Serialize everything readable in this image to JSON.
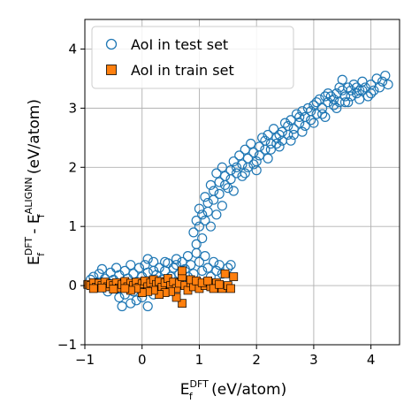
{
  "chart_data": {
    "type": "scatter",
    "xlabel": {
      "main": "E",
      "sub": "f",
      "sup": "DFT",
      "suffix": " (eV/atom)"
    },
    "ylabel": {
      "main1": "E",
      "sub1": "f",
      "sup1": "DFT",
      "mid": " - ",
      "main2": "E",
      "sub2": "f",
      "sup2": "ALIGNN",
      "suffix": " (eV/atom)"
    },
    "xlim": [
      -1,
      4.5
    ],
    "ylim": [
      -1,
      4.5
    ],
    "xticks": [
      "−1",
      "0",
      "1",
      "2",
      "3",
      "4"
    ],
    "xtick_values": [
      -1,
      0,
      1,
      2,
      3,
      4
    ],
    "yticks": [
      "−1",
      "0",
      "1",
      "2",
      "3",
      "4"
    ],
    "ytick_values": [
      -1,
      0,
      1,
      2,
      3,
      4
    ],
    "grid": true,
    "legend_position": "upper-left",
    "series": [
      {
        "name": "AoI in test set",
        "marker": "open-circle",
        "color": "#1f77b4",
        "points": [
          [
            -0.9,
            0.1
          ],
          [
            -0.85,
            0.15
          ],
          [
            -0.8,
            0.05
          ],
          [
            -0.75,
            0.2
          ],
          [
            -0.7,
            0.28
          ],
          [
            -0.65,
            0.12
          ],
          [
            -0.6,
            0.05
          ],
          [
            -0.55,
            0.22
          ],
          [
            -0.5,
            0.1
          ],
          [
            -0.45,
            0.3
          ],
          [
            -0.4,
            0.18
          ],
          [
            -0.35,
            0.02
          ],
          [
            -0.3,
            0.25
          ],
          [
            -0.25,
            0.12
          ],
          [
            -0.2,
            0.35
          ],
          [
            -0.15,
            0.2
          ],
          [
            -0.1,
            0.05
          ],
          [
            -0.05,
            0.3
          ],
          [
            0.0,
            0.15
          ],
          [
            0.05,
            0.35
          ],
          [
            0.1,
            0.22
          ],
          [
            0.15,
            0.05
          ],
          [
            0.2,
            0.4
          ],
          [
            0.25,
            0.18
          ],
          [
            0.3,
            0.3
          ],
          [
            0.35,
            0.1
          ],
          [
            0.4,
            0.25
          ],
          [
            0.45,
            0.38
          ],
          [
            0.5,
            0.15
          ],
          [
            0.55,
            0.3
          ],
          [
            0.6,
            0.45
          ],
          [
            0.65,
            0.2
          ],
          [
            0.7,
            0.4
          ],
          [
            0.75,
            0.28
          ],
          [
            0.8,
            0.5
          ],
          [
            0.85,
            0.35
          ],
          [
            0.9,
            0.2
          ],
          [
            0.95,
            0.55
          ],
          [
            1.0,
            0.4
          ],
          [
            1.05,
            0.25
          ],
          [
            1.1,
            0.5
          ],
          [
            1.15,
            0.3
          ],
          [
            1.2,
            0.15
          ],
          [
            1.25,
            0.4
          ],
          [
            1.3,
            0.25
          ],
          [
            1.35,
            0.35
          ],
          [
            1.4,
            0.2
          ],
          [
            1.5,
            0.3
          ],
          [
            1.55,
            0.35
          ],
          [
            -0.6,
            -0.1
          ],
          [
            -0.4,
            -0.2
          ],
          [
            -0.3,
            -0.15
          ],
          [
            -0.2,
            -0.3
          ],
          [
            -0.1,
            -0.25
          ],
          [
            0.0,
            -0.2
          ],
          [
            0.1,
            -0.35
          ],
          [
            -0.35,
            -0.35
          ],
          [
            0.2,
            -0.15
          ],
          [
            0.3,
            -0.1
          ],
          [
            0.4,
            -0.05
          ],
          [
            -0.45,
            -0.05
          ],
          [
            -0.15,
            -0.1
          ],
          [
            0.05,
            -0.05
          ],
          [
            0.9,
            0.9
          ],
          [
            0.95,
            1.1
          ],
          [
            1.0,
            1.3
          ],
          [
            1.05,
            1.2
          ],
          [
            1.1,
            1.5
          ],
          [
            1.15,
            1.4
          ],
          [
            1.2,
            1.7
          ],
          [
            1.25,
            1.6
          ],
          [
            1.3,
            1.9
          ],
          [
            1.35,
            1.75
          ],
          [
            1.4,
            2.0
          ],
          [
            1.45,
            1.85
          ],
          [
            1.5,
            1.65
          ],
          [
            1.55,
            1.95
          ],
          [
            1.6,
            2.1
          ],
          [
            1.65,
            1.9
          ],
          [
            1.7,
            2.2
          ],
          [
            1.75,
            2.05
          ],
          [
            1.8,
            2.3
          ],
          [
            1.85,
            2.15
          ],
          [
            1.9,
            2.4
          ],
          [
            1.95,
            2.25
          ],
          [
            2.0,
            2.1
          ],
          [
            2.05,
            2.35
          ],
          [
            2.1,
            2.5
          ],
          [
            2.15,
            2.3
          ],
          [
            2.2,
            2.55
          ],
          [
            2.25,
            2.4
          ],
          [
            2.3,
            2.65
          ],
          [
            2.35,
            2.5
          ],
          [
            2.4,
            2.35
          ],
          [
            2.45,
            2.6
          ],
          [
            2.5,
            2.75
          ],
          [
            2.55,
            2.55
          ],
          [
            2.6,
            2.8
          ],
          [
            2.65,
            2.65
          ],
          [
            2.7,
            2.9
          ],
          [
            2.75,
            2.75
          ],
          [
            2.8,
            2.6
          ],
          [
            2.85,
            2.85
          ],
          [
            2.9,
            3.0
          ],
          [
            2.95,
            2.8
          ],
          [
            3.0,
            3.05
          ],
          [
            3.05,
            2.9
          ],
          [
            3.1,
            3.15
          ],
          [
            3.15,
            3.0
          ],
          [
            3.2,
            2.85
          ],
          [
            3.25,
            3.1
          ],
          [
            3.3,
            3.2
          ],
          [
            3.35,
            3.05
          ],
          [
            3.4,
            3.25
          ],
          [
            3.45,
            3.1
          ],
          [
            3.5,
            3.3
          ],
          [
            3.55,
            3.2
          ],
          [
            3.6,
            3.35
          ],
          [
            3.65,
            3.2
          ],
          [
            3.7,
            3.4
          ],
          [
            3.75,
            3.25
          ],
          [
            3.8,
            3.3
          ],
          [
            3.85,
            3.45
          ],
          [
            3.9,
            3.35
          ],
          [
            3.95,
            3.2
          ],
          [
            4.0,
            3.4
          ],
          [
            4.05,
            3.3
          ],
          [
            4.1,
            3.5
          ],
          [
            4.15,
            3.35
          ],
          [
            4.2,
            3.45
          ],
          [
            4.25,
            3.55
          ],
          [
            4.3,
            3.4
          ],
          [
            3.5,
            3.48
          ],
          [
            1.3,
            1.2
          ],
          [
            1.4,
            1.35
          ],
          [
            1.6,
            1.6
          ],
          [
            1.8,
            1.9
          ],
          [
            2.0,
            1.95
          ],
          [
            2.2,
            2.15
          ],
          [
            2.4,
            2.55
          ],
          [
            2.6,
            2.45
          ],
          [
            2.8,
            2.95
          ],
          [
            3.0,
            2.75
          ],
          [
            3.2,
            3.2
          ],
          [
            3.4,
            3.0
          ],
          [
            3.6,
            3.1
          ],
          [
            3.8,
            3.15
          ],
          [
            4.0,
            3.25
          ],
          [
            1.2,
            1.0
          ],
          [
            1.1,
            1.1
          ],
          [
            1.0,
            1.0
          ],
          [
            0.95,
            0.7
          ],
          [
            1.05,
            0.8
          ],
          [
            1.15,
            1.25
          ],
          [
            1.25,
            1.45
          ],
          [
            1.35,
            1.55
          ],
          [
            1.45,
            1.7
          ],
          [
            1.55,
            1.8
          ],
          [
            1.65,
            2.0
          ],
          [
            1.75,
            1.85
          ],
          [
            1.85,
            2.0
          ],
          [
            1.95,
            2.05
          ],
          [
            2.05,
            2.2
          ],
          [
            2.15,
            2.45
          ],
          [
            2.25,
            2.3
          ],
          [
            2.35,
            2.4
          ],
          [
            2.45,
            2.45
          ],
          [
            2.55,
            2.7
          ],
          [
            2.65,
            2.55
          ],
          [
            2.75,
            2.85
          ],
          [
            2.85,
            2.7
          ],
          [
            2.95,
            2.95
          ],
          [
            3.05,
            3.1
          ],
          [
            3.15,
            2.9
          ],
          [
            3.25,
            3.25
          ],
          [
            3.35,
            3.15
          ],
          [
            3.45,
            3.35
          ],
          [
            3.55,
            3.1
          ],
          [
            3.65,
            3.3
          ],
          [
            3.75,
            3.35
          ],
          [
            3.85,
            3.3
          ],
          [
            0.3,
            0.05
          ],
          [
            0.5,
            0.0
          ],
          [
            0.7,
            0.1
          ],
          [
            0.8,
            0.15
          ],
          [
            0.6,
            0.35
          ],
          [
            0.4,
            0.4
          ],
          [
            0.2,
            0.25
          ],
          [
            0.1,
            0.45
          ]
        ]
      },
      {
        "name": "AoI in train set",
        "marker": "filled-square",
        "color": "#ff7f0e",
        "points": [
          [
            -0.95,
            0.02
          ],
          [
            -0.9,
            0.0
          ],
          [
            -0.85,
            0.05
          ],
          [
            -0.8,
            -0.03
          ],
          [
            -0.75,
            0.04
          ],
          [
            -0.7,
            0.0
          ],
          [
            -0.65,
            0.06
          ],
          [
            -0.6,
            -0.02
          ],
          [
            -0.55,
            0.03
          ],
          [
            -0.5,
            0.0
          ],
          [
            -0.45,
            0.05
          ],
          [
            -0.4,
            -0.04
          ],
          [
            -0.35,
            0.02
          ],
          [
            -0.3,
            0.07
          ],
          [
            -0.25,
            -0.02
          ],
          [
            -0.2,
            0.04
          ],
          [
            -0.15,
            0.0
          ],
          [
            -0.1,
            0.06
          ],
          [
            -0.05,
            -0.03
          ],
          [
            0.0,
            0.03
          ],
          [
            0.05,
            0.08
          ],
          [
            0.1,
            -0.02
          ],
          [
            0.15,
            0.05
          ],
          [
            0.2,
            0.1
          ],
          [
            0.25,
            0.02
          ],
          [
            0.3,
            0.07
          ],
          [
            0.35,
            -0.03
          ],
          [
            0.4,
            0.05
          ],
          [
            0.45,
            0.12
          ],
          [
            0.5,
            0.0
          ],
          [
            0.55,
            0.06
          ],
          [
            0.6,
            -0.05
          ],
          [
            0.65,
            0.04
          ],
          [
            0.7,
            0.15
          ],
          [
            0.75,
            0.0
          ],
          [
            0.8,
            -0.08
          ],
          [
            0.85,
            0.05
          ],
          [
            0.9,
            -0.02
          ],
          [
            1.0,
            -0.05
          ],
          [
            1.1,
            0.0
          ],
          [
            1.2,
            -0.02
          ],
          [
            1.3,
            0.05
          ],
          [
            1.4,
            -0.05
          ],
          [
            1.5,
            0.0
          ],
          [
            1.55,
            -0.05
          ],
          [
            1.6,
            0.15
          ],
          [
            1.45,
            0.2
          ],
          [
            0.7,
            0.25
          ],
          [
            0.7,
            -0.3
          ],
          [
            0.6,
            -0.2
          ],
          [
            0.5,
            -0.1
          ],
          [
            0.4,
            -0.12
          ],
          [
            0.3,
            -0.15
          ],
          [
            0.2,
            -0.08
          ],
          [
            0.1,
            -0.1
          ],
          [
            0.0,
            -0.12
          ],
          [
            -0.1,
            -0.05
          ],
          [
            -0.2,
            -0.08
          ],
          [
            -0.3,
            -0.05
          ],
          [
            -0.5,
            -0.06
          ],
          [
            -0.7,
            -0.04
          ],
          [
            -0.85,
            -0.05
          ],
          [
            0.85,
            0.1
          ],
          [
            0.95,
            0.08
          ],
          [
            1.05,
            0.05
          ],
          [
            1.15,
            0.08
          ],
          [
            1.25,
            -0.05
          ],
          [
            1.35,
            0.02
          ]
        ]
      }
    ]
  }
}
